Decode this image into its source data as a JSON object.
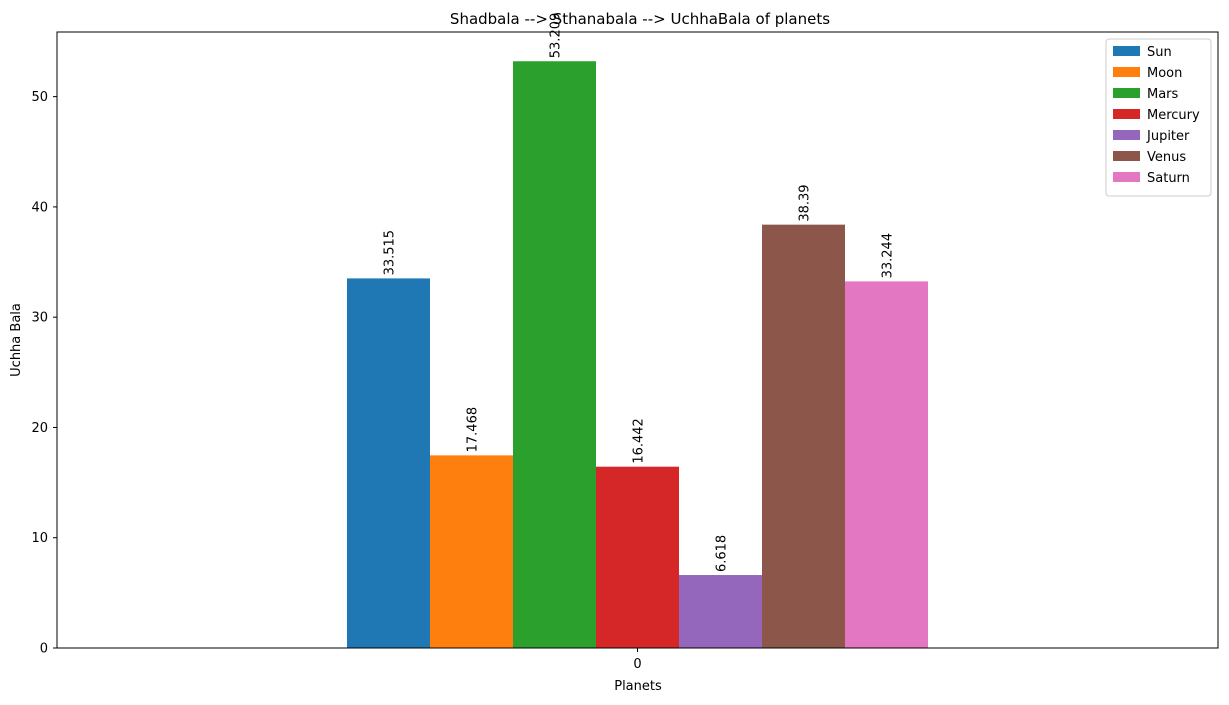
{
  "chart_data": {
    "type": "bar",
    "title": "Shadbala --> Sthanabala --> UchhaBala of planets",
    "xlabel": "Planets",
    "ylabel": "Uchha Bala",
    "categories": [
      "0"
    ],
    "ylim": [
      0,
      55.86
    ],
    "yticks": [
      0,
      10,
      20,
      30,
      40,
      50
    ],
    "grid": false,
    "legend_position": "top-right",
    "series": [
      {
        "name": "Sun",
        "values": [
          33.515
        ],
        "label": "33.515",
        "color": "#1f77b4"
      },
      {
        "name": "Moon",
        "values": [
          17.468
        ],
        "label": "17.468",
        "color": "#ff7f0e"
      },
      {
        "name": "Mars",
        "values": [
          53.209
        ],
        "label": "53.209",
        "color": "#2ca02c"
      },
      {
        "name": "Mercury",
        "values": [
          16.442
        ],
        "label": "16.442",
        "color": "#d62728"
      },
      {
        "name": "Jupiter",
        "values": [
          6.618
        ],
        "label": "6.618",
        "color": "#9467bd"
      },
      {
        "name": "Venus",
        "values": [
          38.39
        ],
        "label": "38.39",
        "color": "#8c564b"
      },
      {
        "name": "Saturn",
        "values": [
          33.244
        ],
        "label": "33.244",
        "color": "#e377c2"
      }
    ]
  }
}
